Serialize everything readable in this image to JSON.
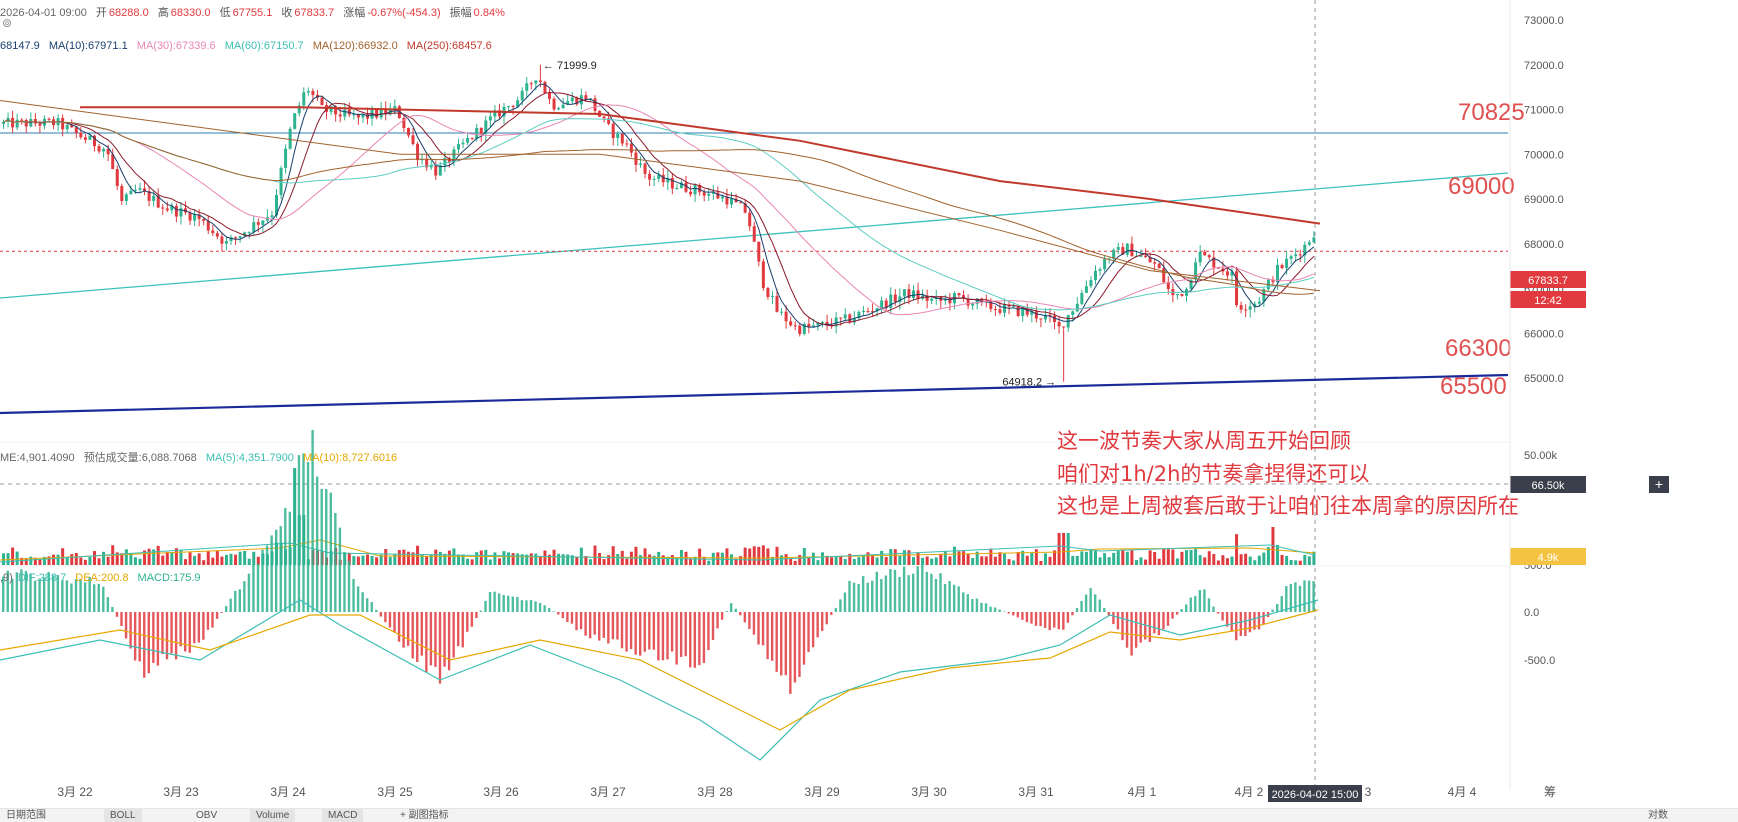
{
  "header": {
    "date": "2026-04-01 09:00",
    "open_label": "开",
    "open": "68288.0",
    "high_label": "高",
    "high": "68330.0",
    "low_label": "低",
    "low": "67755.1",
    "close_label": "收",
    "close": "67833.7",
    "change_label": "涨幅",
    "change": "-0.67%(-454.3)",
    "amp_label": "振幅",
    "amp": "0.84%"
  },
  "ma_line": {
    "ma5": "68147.9",
    "ma10": "MA(10):67971.1",
    "ma30": "MA(30):67339.6",
    "ma60": "MA(60):67150.7",
    "ma120": "MA(120):66932.0",
    "ma250": "MA(250):68457.6"
  },
  "volume_line": {
    "vol": "ME:4,901.4090",
    "est": "预估成交量:6,088.7068",
    "ma5": "MA(5):4,351.7900",
    "ma10": "MA(10):8,727.6016"
  },
  "macd_line": {
    "prefix": ",9)",
    "dif": "DIF:288.7",
    "dea": "DEA:200.8",
    "macd": "MACD:175.9"
  },
  "colors": {
    "up": "#2eb28f",
    "down": "#e0393e",
    "ma10": "#1a3f6e",
    "ma30": "#e986b4",
    "ma60": "#5ccdc2",
    "ma120": "#a0622d",
    "ma250": "#c0392b",
    "support": "#1a2a9a",
    "cyan": "#3cc1bc"
  },
  "chart_data": {
    "type": "candlestick",
    "price_axis": {
      "ticks": [
        "73000.0",
        "72000.0",
        "71000.0",
        "70000.0",
        "69000.0",
        "68000.0",
        "67000.0",
        "66000.0",
        "65000.0"
      ],
      "current_price": "67833.7",
      "countdown": "12:42",
      "crosshair_value": "66.50k"
    },
    "volume_axis": {
      "ticks": [
        "50.00k"
      ],
      "current": "4.9k"
    },
    "macd_axis": {
      "ticks": [
        "500.0",
        "0.0",
        "-500.0"
      ]
    },
    "x_ticks": [
      "3月 22",
      "3月 23",
      "3月 24",
      "3月 25",
      "3月 26",
      "3月 27",
      "3月 28",
      "3月 29",
      "3月 30",
      "3月 31",
      "4月 1",
      "4月 2",
      "3",
      "4月 4"
    ],
    "crosshair_time": "2026-04-02 15:00",
    "annotations": {
      "high_mark": "71999.9",
      "low_mark": "64918.2",
      "level_70825": "70825",
      "level_69000": "69000",
      "level_66300": "66300",
      "level_65500": "65500",
      "note_line1": "这一波节奏大家从周五开始回顾",
      "note_line2": "咱们对1h/2h的节奏拿捏得还可以",
      "note_line3": "这也是上周被套后敢于让咱们往本周拿的原因所在"
    }
  },
  "bottom": {
    "tab1": "日期范围",
    "tab2": "BOLL",
    "tab3": "OBV",
    "tab4": "Volume",
    "tab5": "MACD",
    "tab6": "+ 副图指标",
    "corner": "筹",
    "right": "对数"
  }
}
